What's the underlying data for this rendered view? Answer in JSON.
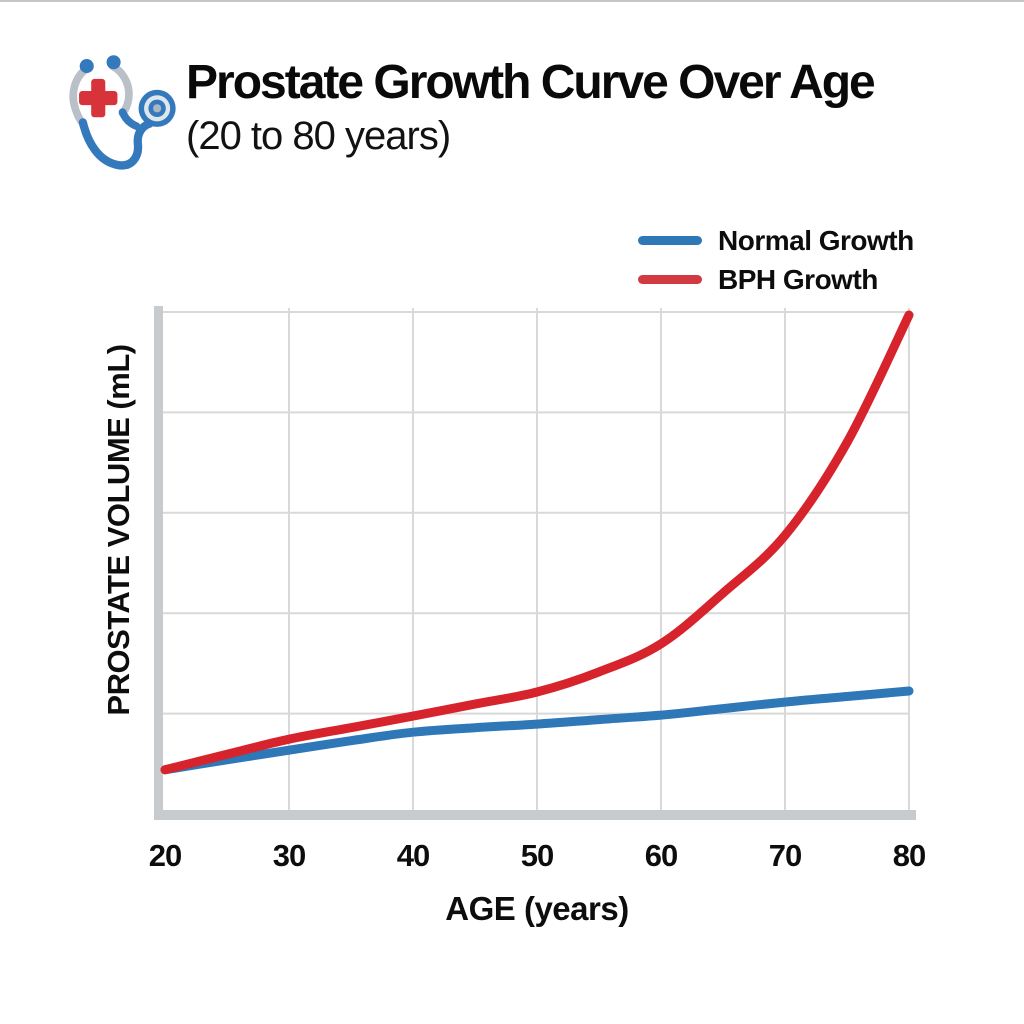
{
  "header": {
    "title": "Prostate Growth Curve Over Age",
    "subtitle": "(20 to 80 years)",
    "icon": "stethoscope-with-red-cross-icon"
  },
  "legend": {
    "position": "top-right",
    "items": [
      {
        "label": "Normal Growth",
        "color": "#2e78b8"
      },
      {
        "label": "BPH Growth",
        "color": "#d23a41"
      }
    ]
  },
  "chart_data": {
    "type": "line",
    "title": "Prostate Growth Curve Over Age (20 to 80 years)",
    "xlabel": "AGE (years)",
    "ylabel": "PROSTATE VOLUME (mL)",
    "xlim": [
      20,
      80
    ],
    "ylim": [
      0,
      100
    ],
    "x_ticks": [
      20,
      30,
      40,
      50,
      60,
      70,
      80
    ],
    "y_tick_labels_shown": false,
    "grid": true,
    "x": [
      20,
      25,
      30,
      35,
      40,
      45,
      50,
      55,
      60,
      65,
      70,
      75,
      80
    ],
    "series": [
      {
        "name": "Normal Growth",
        "color": "#2e78b8",
        "values": [
          8.8,
          10.8,
          12.7,
          14.6,
          16.3,
          17.2,
          17.9,
          18.8,
          19.7,
          21.0,
          22.3,
          23.4,
          24.5
        ]
      },
      {
        "name": "BPH Growth",
        "color": "#d7232b",
        "values": [
          8.8,
          11.9,
          14.9,
          17.2,
          19.5,
          21.9,
          24.3,
          28.3,
          33.9,
          44.0,
          55.5,
          74.0,
          99.4
        ]
      }
    ]
  },
  "colors": {
    "grid": "#d9d9d9",
    "axis_band": "#c8cbce",
    "text": "#0d0d0d"
  }
}
